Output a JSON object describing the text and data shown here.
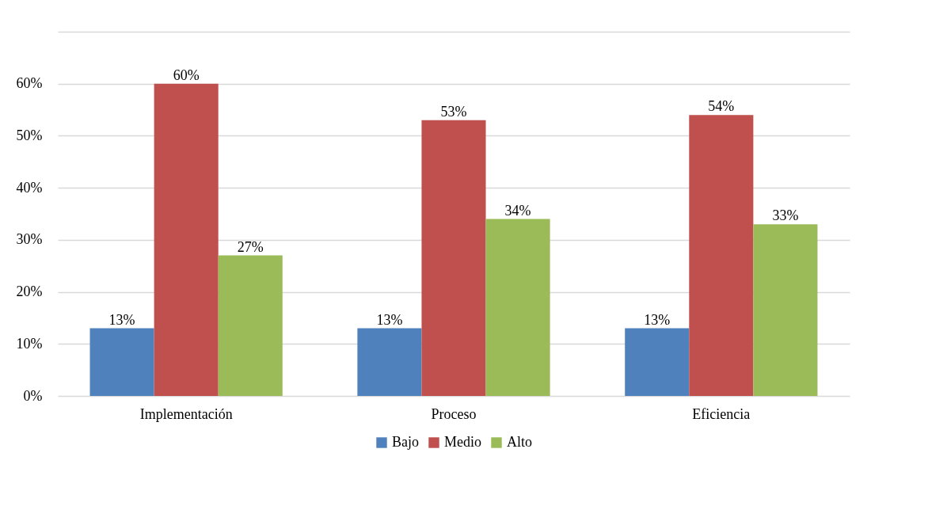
{
  "chart_data": {
    "type": "bar",
    "categories": [
      "Implementación",
      "Proceso",
      "Eficiencia"
    ],
    "series": [
      {
        "name": "Bajo",
        "color": "#4f81bd",
        "values": [
          13,
          13,
          13
        ],
        "value_labels": [
          "13%",
          "13%",
          "13%"
        ]
      },
      {
        "name": "Medio",
        "color": "#c0504d",
        "values": [
          60,
          53,
          54
        ],
        "value_labels": [
          "60%",
          "53%",
          "54%"
        ]
      },
      {
        "name": "Alto",
        "color": "#9bbb59",
        "values": [
          27,
          34,
          33
        ],
        "value_labels": [
          "27%",
          "34%",
          "33%"
        ]
      }
    ],
    "ylim": [
      0,
      70
    ],
    "yticks": [
      {
        "value": 0,
        "label": "0%"
      },
      {
        "value": 10,
        "label": "10%"
      },
      {
        "value": 20,
        "label": "20%"
      },
      {
        "value": 30,
        "label": "30%"
      },
      {
        "value": 40,
        "label": "40%"
      },
      {
        "value": 50,
        "label": "50%"
      },
      {
        "value": 60,
        "label": "60%"
      },
      {
        "value": 70,
        "label": null
      }
    ],
    "grid": true,
    "legend": "bottom"
  }
}
